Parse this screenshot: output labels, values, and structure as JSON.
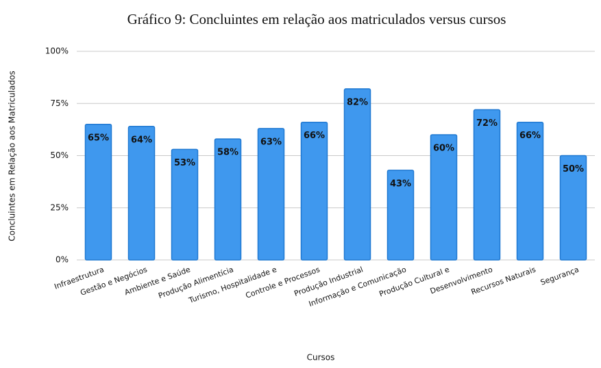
{
  "chart_data": {
    "type": "bar",
    "title": "Gráfico 9: Concluintes em relação aos matriculados versus cursos",
    "x_label": "Cursos",
    "y_label": "Concluintes em Relação aos Matriculados",
    "categories": [
      "Infraestrutura",
      "Gestão e Negócios",
      "Ambiente e Saúde",
      "Produção Alimentícia",
      "Turismo, Hospitalidade e",
      "Controle e Processos",
      "Produção Industrial",
      "Informação e Comunicação",
      "Produção Cultural e",
      "Desenvolvimento",
      "Recursos Naturais",
      "Segurança"
    ],
    "values": [
      65,
      64,
      53,
      58,
      63,
      66,
      82,
      43,
      60,
      72,
      66,
      50
    ],
    "value_labels": [
      "65%",
      "64%",
      "53%",
      "58%",
      "63%",
      "66%",
      "82%",
      "43%",
      "60%",
      "72%",
      "66%",
      "50%"
    ],
    "color": "#3f98ee",
    "ylim": [
      0,
      100
    ],
    "yticks": [
      {
        "value": 0,
        "label": "0%"
      },
      {
        "value": 25,
        "label": "25%"
      },
      {
        "value": 50,
        "label": "50%"
      },
      {
        "value": 75,
        "label": "75%"
      },
      {
        "value": 100,
        "label": "100%"
      }
    ],
    "grid": true
  }
}
